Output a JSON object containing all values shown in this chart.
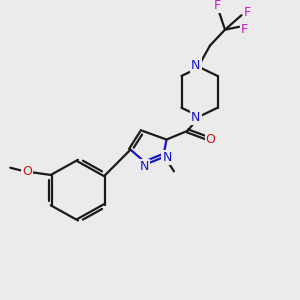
{
  "bg_color": "#ebebeb",
  "bond_color": "#1a1a1a",
  "N_color": "#1414cc",
  "O_color": "#cc1414",
  "F_color": "#cc14cc",
  "line_width": 1.6,
  "figsize": [
    3.0,
    3.0
  ],
  "dpi": 100,
  "xlim": [
    0,
    10
  ],
  "ylim": [
    0,
    10
  ]
}
